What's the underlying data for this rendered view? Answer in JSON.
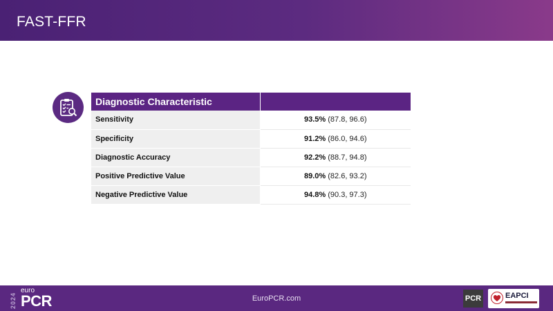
{
  "header": {
    "title": "FAST-FFR"
  },
  "table": {
    "header": [
      "Diagnostic Characteristic",
      ""
    ],
    "rows": [
      {
        "label": "Sensitivity",
        "value": "93.5%",
        "ci": " (87.8, 96.6)"
      },
      {
        "label": "Specificity",
        "value": "91.2%",
        "ci": " (86.0, 94.6)"
      },
      {
        "label": "Diagnostic Accuracy",
        "value": "92.2%",
        "ci": " (88.7, 94.8)"
      },
      {
        "label": "Positive Predictive Value",
        "value": "89.0%",
        "ci": " (82.6, 93.2)"
      },
      {
        "label": "Negative Predictive Value",
        "value": "94.8%",
        "ci": " (90.3, 97.3)"
      }
    ]
  },
  "footer": {
    "year": "2024",
    "brand_small": "euro",
    "brand_large": "PCR",
    "link": "EuroPCR.com",
    "badge": "PCR",
    "partner": "EAPCI"
  },
  "colors": {
    "primary": "#5b2483",
    "accent": "#8a3a8a",
    "row_label_bg": "#efefef"
  },
  "icons": [
    "clipboard-checklist-icon"
  ]
}
